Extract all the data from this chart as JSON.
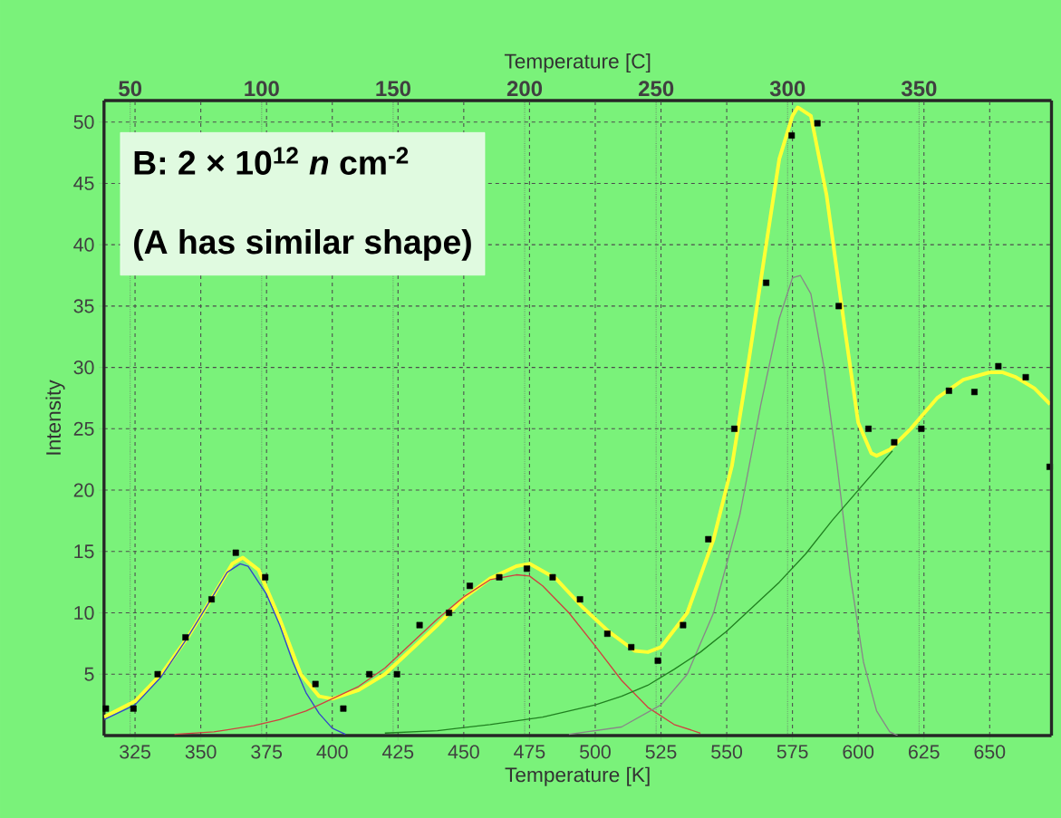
{
  "chart_data": {
    "type": "line",
    "xlabel": "Temperature [K]",
    "x2label": "Temperature [C]",
    "ylabel": "Intensity",
    "annotations": [
      "B: 2 × 10$^{12}$ *n* cm$^{-2}$",
      "(A has similar shape)"
    ],
    "xlim": [
      313.2,
      673.5
    ],
    "xticks": [
      325,
      350,
      375,
      400,
      425,
      450,
      475,
      500,
      525,
      550,
      575,
      600,
      625,
      650
    ],
    "x2lim": [
      40.05,
      400.35
    ],
    "x2ticks": [
      50,
      100,
      150,
      200,
      250,
      300,
      350
    ],
    "ylim": [
      0,
      51.75
    ],
    "yticks": [
      5,
      10,
      15,
      20,
      25,
      30,
      35,
      40,
      45,
      50
    ],
    "grid": true,
    "series": [
      {
        "color": "#ffff33",
        "marker": "none",
        "x": [
          313.2,
          325,
          335,
          345,
          355,
          362,
          366,
          372,
          380,
          388,
          395,
          400,
          410,
          420,
          430,
          440,
          450,
          460,
          470,
          475,
          485,
          495,
          505,
          515,
          520,
          525,
          535,
          545,
          552,
          558,
          565,
          570,
          575,
          577,
          582,
          588,
          595,
          600,
          605,
          607,
          612,
          620,
          630,
          640,
          650,
          655,
          660,
          667,
          673
        ],
        "values": [
          1.5,
          2.8,
          5,
          8,
          11.5,
          14,
          14.5,
          13.5,
          9.5,
          5,
          3.2,
          3,
          3.7,
          5,
          7,
          9,
          11.2,
          12.8,
          13.8,
          14,
          12.8,
          10.5,
          8.5,
          6.9,
          6.8,
          7.2,
          10,
          16,
          22,
          30,
          40,
          47,
          50.5,
          51.2,
          50.5,
          44,
          33,
          25.5,
          23,
          22.8,
          23.3,
          25,
          27.5,
          29,
          29.6,
          29.6,
          29.2,
          28.3,
          27
        ]
      },
      {
        "color": "#3344cc",
        "marker": "none",
        "x": [
          313.2,
          325,
          335,
          345,
          355,
          360,
          365,
          368,
          375,
          380,
          385,
          390,
          395,
          400,
          405
        ],
        "values": [
          1.3,
          2.5,
          4.8,
          8,
          11.5,
          13.3,
          14,
          13.8,
          11.5,
          9,
          6,
          3.5,
          1.8,
          0.6,
          0.1
        ]
      },
      {
        "color": "#d04040",
        "marker": "none",
        "x": [
          340,
          355,
          370,
          380,
          390,
          400,
          410,
          420,
          430,
          440,
          450,
          460,
          470,
          475,
          480,
          490,
          500,
          510,
          520,
          530,
          540
        ],
        "values": [
          0.1,
          0.3,
          0.8,
          1.3,
          2,
          3,
          4,
          5.5,
          7.5,
          9.5,
          11.3,
          12.7,
          13.1,
          13,
          12.2,
          10,
          7.3,
          4.5,
          2.3,
          0.9,
          0.2
        ]
      },
      {
        "color": "#888888",
        "marker": "none",
        "x": [
          490,
          510,
          525,
          535,
          545,
          555,
          563,
          570,
          575,
          578,
          582,
          587,
          592,
          597,
          602,
          607,
          612,
          615
        ],
        "values": [
          0.1,
          0.7,
          2.5,
          5,
          10,
          18,
          27,
          34,
          37.3,
          37.5,
          36,
          30,
          22,
          13,
          6,
          2,
          0.3,
          0
        ]
      },
      {
        "color": "#208020",
        "marker": "none",
        "x": [
          420,
          440,
          460,
          480,
          500,
          510,
          520,
          530,
          540,
          550,
          560,
          570,
          580,
          590,
          600,
          613
        ],
        "values": [
          0.2,
          0.4,
          0.9,
          1.5,
          2.5,
          3.2,
          4.1,
          5.4,
          6.8,
          8.5,
          10.5,
          12.5,
          14.8,
          17.5,
          20,
          23.2
        ]
      },
      {
        "type": "scatter",
        "color": "#000000",
        "marker": "square",
        "x": [
          313.9,
          324.4,
          333.6,
          344.2,
          354.1,
          363.3,
          374.5,
          393.6,
          404.2,
          414.1,
          424.6,
          433.2,
          444.4,
          452.3,
          463.5,
          474.0,
          483.8,
          494.2,
          504.6,
          513.7,
          523.8,
          533.4,
          543.0,
          552.9,
          565.0,
          574.7,
          584.5,
          592.6,
          603.9,
          613.7,
          624.0,
          634.5,
          644.2,
          653.3,
          663.7,
          672.8
        ],
        "values": [
          2.2,
          2.2,
          5.0,
          8.0,
          11.1,
          14.9,
          12.9,
          4.2,
          2.2,
          5.0,
          5.0,
          9.0,
          10.0,
          12.2,
          12.9,
          13.6,
          12.9,
          11.1,
          8.3,
          7.2,
          6.1,
          9.0,
          16.0,
          25.0,
          36.9,
          48.9,
          49.9,
          35.0,
          25.0,
          23.9,
          25.0,
          28.1,
          28.0,
          30.1,
          29.2,
          21.9
        ]
      }
    ]
  }
}
